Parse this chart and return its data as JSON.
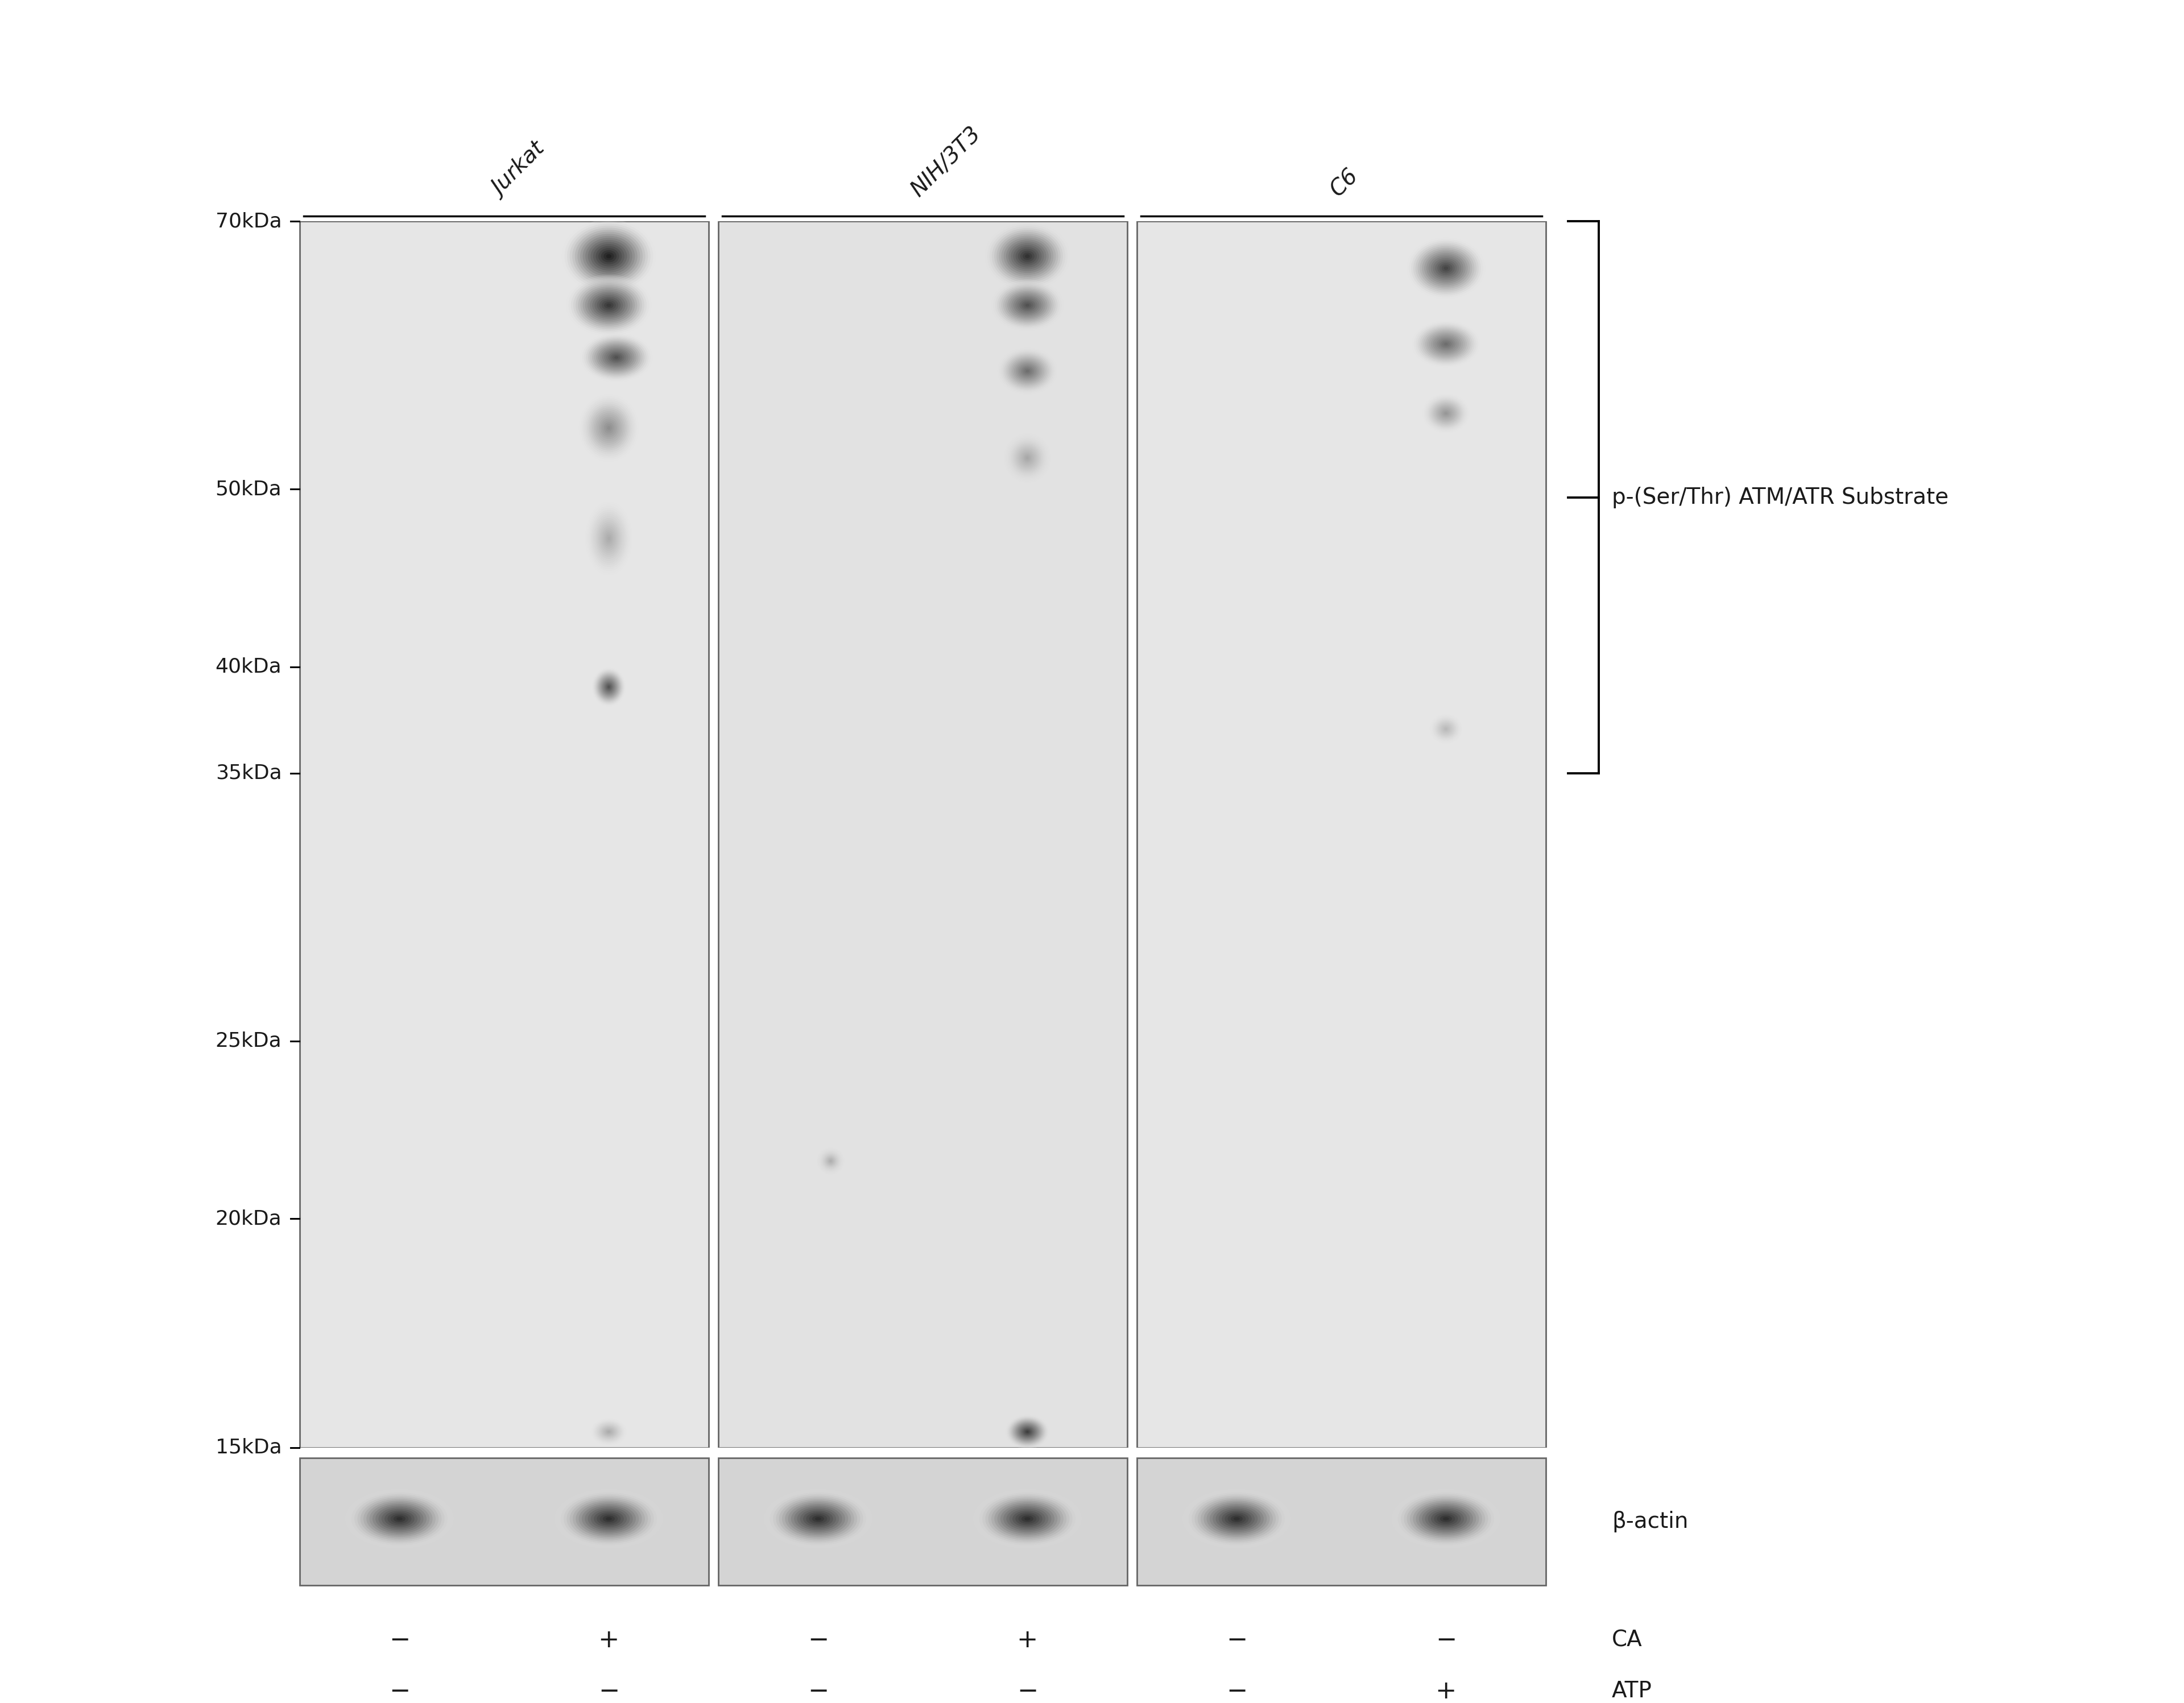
{
  "bg_color": "#ffffff",
  "cell_lines": [
    "Jurkat",
    "NIH/3T3",
    "C6"
  ],
  "mw_labels": [
    "70kDa",
    "50kDa",
    "40kDa",
    "35kDa",
    "25kDa",
    "20kDa",
    "15kDa"
  ],
  "mw_values": [
    70,
    50,
    40,
    35,
    25,
    20,
    15
  ],
  "bracket_label": "p-(Ser/Thr) ATM/ATR Substrate",
  "beta_actin_label": "β-actin",
  "ca_label": "CA",
  "atp_label": "ATP",
  "ca_signs": [
    "−",
    "+",
    "−",
    "+",
    "−",
    "−"
  ],
  "atp_signs": [
    "−",
    "−",
    "−",
    "−",
    "−",
    "+"
  ],
  "font_size_labels": 28,
  "font_size_mw": 26,
  "font_size_annotation": 28,
  "font_size_signs": 32
}
